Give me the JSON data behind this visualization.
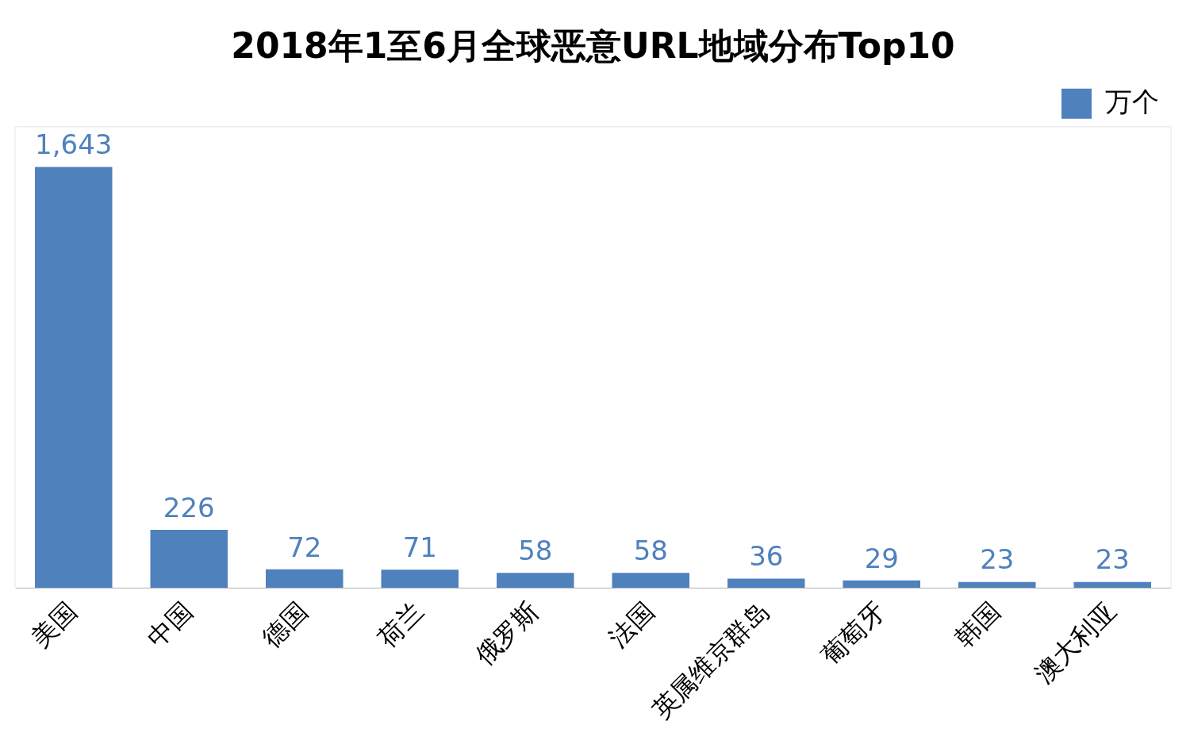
{
  "chart_data": {
    "type": "bar",
    "title": "2018年1至6月全球恶意URL地域分布Top10",
    "categories": [
      "美国",
      "中国",
      "德国",
      "荷兰",
      "俄罗斯",
      "法国",
      "英属维京群岛",
      "葡萄牙",
      "韩国",
      "澳大利亚"
    ],
    "series": [
      {
        "name": "万个",
        "color": "#4f81bd",
        "values": [
          1643,
          226,
          72,
          71,
          58,
          58,
          36,
          29,
          23,
          23
        ],
        "value_labels": [
          "1,643",
          "226",
          "72",
          "71",
          "58",
          "58",
          "36",
          "29",
          "23",
          "23"
        ]
      }
    ],
    "legend": "top right",
    "grid": false
  }
}
